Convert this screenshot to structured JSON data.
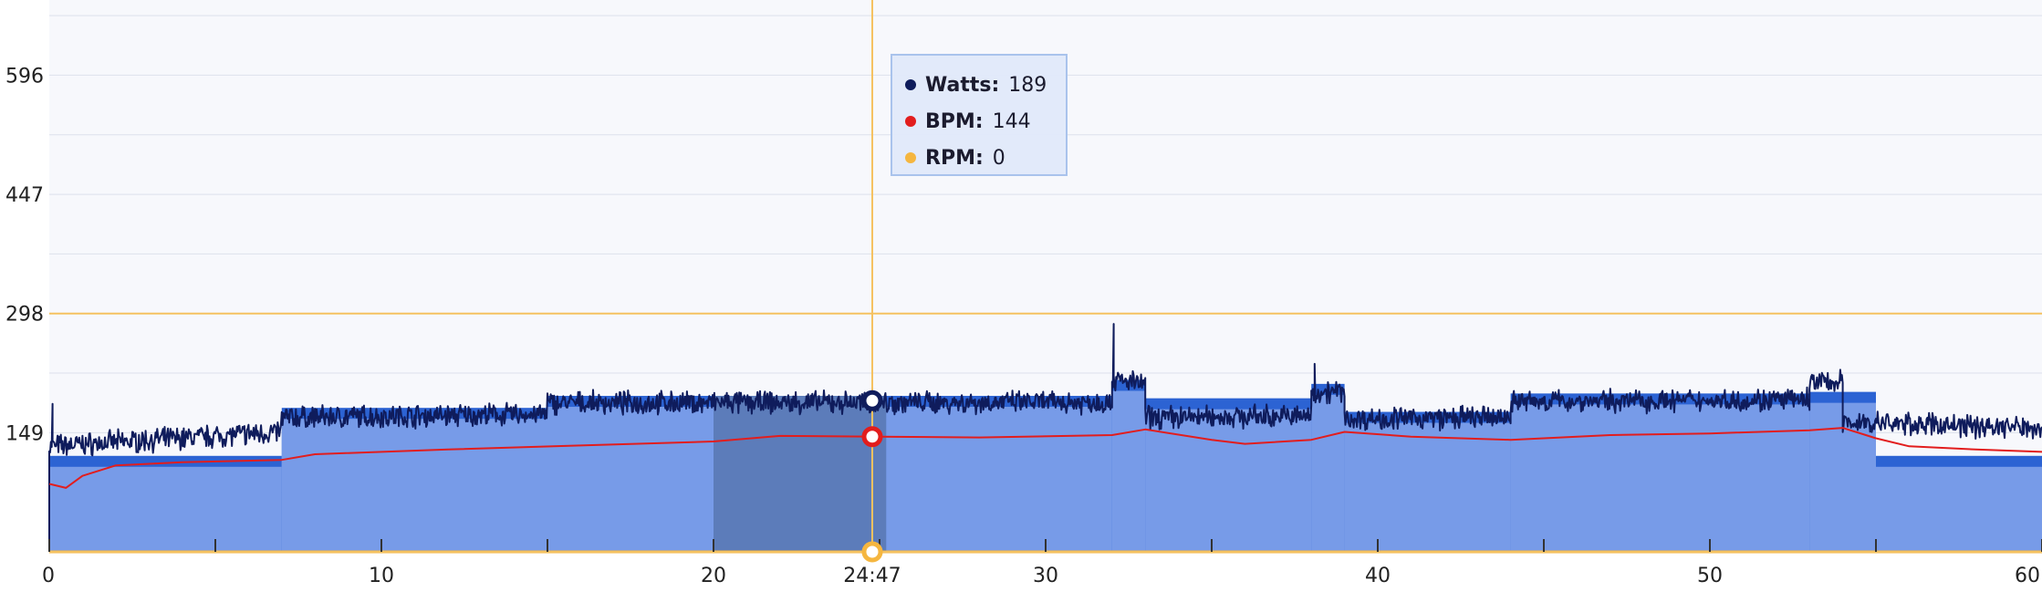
{
  "chart_data": {
    "type": "line",
    "x_range": [
      0,
      60
    ],
    "y_range": [
      0,
      690
    ],
    "x_ticks": [
      {
        "value": 0,
        "label": "0"
      },
      {
        "value": 10,
        "label": "10"
      },
      {
        "value": 20,
        "label": "20"
      },
      {
        "value": 30,
        "label": "30"
      },
      {
        "value": 40,
        "label": "40"
      },
      {
        "value": 50,
        "label": "50"
      },
      {
        "value": 60,
        "label": "60"
      }
    ],
    "x_minor_ticks": [
      5,
      15,
      25,
      35,
      45,
      55
    ],
    "y_ticks": [
      {
        "value": 149,
        "label": "149"
      },
      {
        "value": 298,
        "label": "298"
      },
      {
        "value": 447,
        "label": "447"
      },
      {
        "value": 596,
        "label": "596"
      }
    ],
    "y_grid": [
      74.5,
      149,
      223.5,
      298,
      372.5,
      447,
      521.5,
      596,
      670.5
    ],
    "threshold_line": 298,
    "cursor": {
      "x": 24.78,
      "label": "24:47"
    },
    "highlight_interval": [
      20,
      25.2
    ],
    "target_blocks": [
      {
        "x_start": 0,
        "x_end": 7,
        "value": 120
      },
      {
        "x_start": 7,
        "x_end": 15,
        "value": 180
      },
      {
        "x_start": 15,
        "x_end": 32,
        "value": 195
      },
      {
        "x_start": 32,
        "x_end": 33,
        "value": 215
      },
      {
        "x_start": 33,
        "x_end": 38,
        "value": 192
      },
      {
        "x_start": 38,
        "x_end": 39,
        "value": 210
      },
      {
        "x_start": 39,
        "x_end": 44,
        "value": 175
      },
      {
        "x_start": 44,
        "x_end": 53,
        "value": 198
      },
      {
        "x_start": 53,
        "x_end": 55,
        "value": 200
      },
      {
        "x_start": 55,
        "x_end": 60,
        "value": 120
      }
    ],
    "series": [
      {
        "name": "Watts",
        "color": "#0f1c5c",
        "noise": 11,
        "segments": [
          {
            "x_start": 0,
            "x_end": 7,
            "from": 132,
            "to": 150
          },
          {
            "x_start": 7,
            "x_end": 15,
            "from": 168,
            "to": 172
          },
          {
            "x_start": 15,
            "x_end": 32,
            "from": 186,
            "to": 187
          },
          {
            "x_start": 32,
            "x_end": 33,
            "from": 215,
            "to": 210
          },
          {
            "x_start": 33,
            "x_end": 38,
            "from": 168,
            "to": 170
          },
          {
            "x_start": 38,
            "x_end": 39,
            "from": 200,
            "to": 200
          },
          {
            "x_start": 39,
            "x_end": 44,
            "from": 166,
            "to": 168
          },
          {
            "x_start": 44,
            "x_end": 53,
            "from": 188,
            "to": 190
          },
          {
            "x_start": 53,
            "x_end": 54,
            "from": 212,
            "to": 212
          },
          {
            "x_start": 54,
            "x_end": 60,
            "from": 162,
            "to": 155
          }
        ],
        "spikes": [
          {
            "x": 0.1,
            "value": 185
          },
          {
            "x": 32.05,
            "value": 285
          },
          {
            "x": 38.1,
            "value": 235
          }
        ]
      },
      {
        "name": "BPM",
        "color": "#e21d1d",
        "points": [
          [
            0,
            85
          ],
          [
            0.5,
            80
          ],
          [
            1,
            95
          ],
          [
            2,
            108
          ],
          [
            4,
            112
          ],
          [
            7,
            115
          ],
          [
            8,
            122
          ],
          [
            12,
            128
          ],
          [
            16,
            133
          ],
          [
            20,
            138
          ],
          [
            22,
            145
          ],
          [
            25,
            144
          ],
          [
            28,
            143
          ],
          [
            32,
            146
          ],
          [
            33,
            153
          ],
          [
            35,
            140
          ],
          [
            36,
            135
          ],
          [
            38,
            140
          ],
          [
            39,
            150
          ],
          [
            41,
            144
          ],
          [
            44,
            140
          ],
          [
            47,
            146
          ],
          [
            50,
            148
          ],
          [
            53,
            152
          ],
          [
            54,
            155
          ],
          [
            55,
            142
          ],
          [
            56,
            132
          ],
          [
            58,
            128
          ],
          [
            60,
            125
          ]
        ]
      },
      {
        "name": "RPM",
        "color": "#f5b63f",
        "points": [
          [
            0,
            0
          ],
          [
            60,
            0
          ]
        ]
      }
    ],
    "tooltip": {
      "items": [
        {
          "label": "Watts:",
          "value": "189",
          "color": "#0f1c5c"
        },
        {
          "label": "BPM:",
          "value": "144",
          "color": "#e21d1d"
        },
        {
          "label": "RPM:",
          "value": "0",
          "color": "#f5b63f"
        }
      ]
    },
    "cursor_markers": [
      {
        "series": "Watts",
        "value": 189
      },
      {
        "series": "BPM",
        "value": 144
      },
      {
        "series": "RPM",
        "value": 0
      }
    ],
    "colors": {
      "background": "#f7f8fc",
      "gridline": "#dde1ec",
      "target_fill_light": "#779be8",
      "target_fill_dark": "#2c63d3",
      "highlight_fill": "#5c7cba",
      "threshold": "#f5c260",
      "cursor": "#f5c260"
    }
  }
}
